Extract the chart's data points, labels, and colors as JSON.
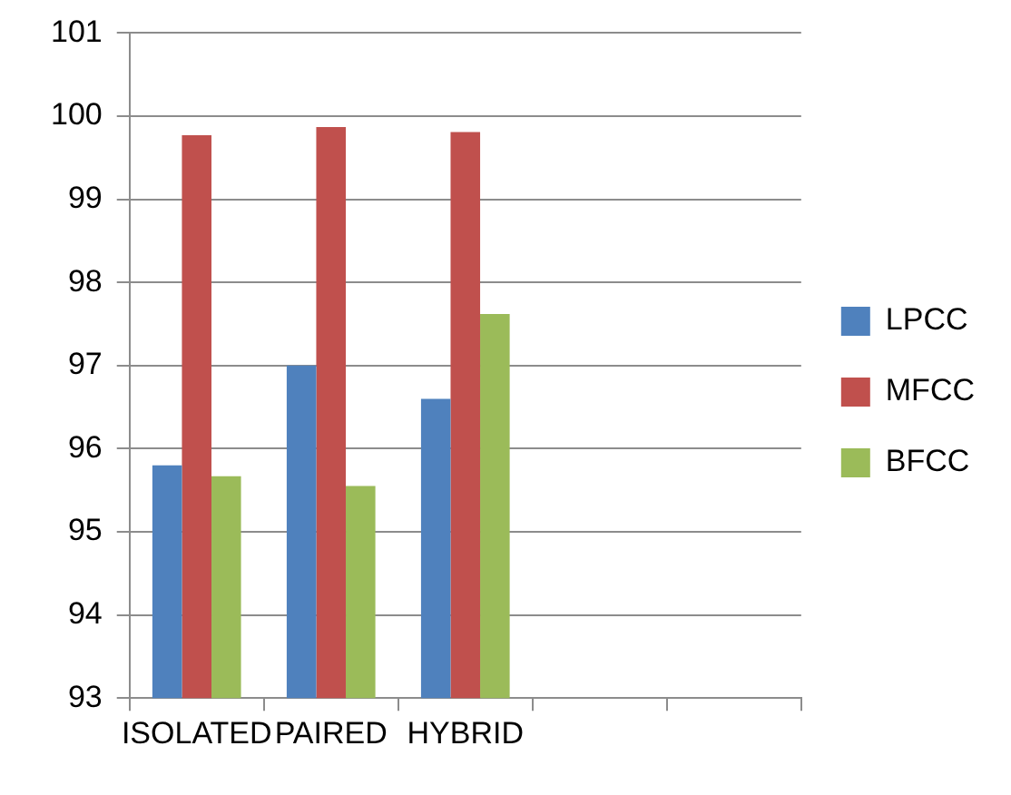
{
  "chart_data": {
    "type": "bar",
    "categories": [
      "ISOLATED",
      "PAIRED",
      "HYBRID",
      null,
      null
    ],
    "series": [
      {
        "name": "LPCC",
        "color": "#4f81bd",
        "values": [
          95.8,
          97.0,
          96.6,
          null,
          null
        ]
      },
      {
        "name": "MFCC",
        "color": "#c0504d",
        "values": [
          99.77,
          99.87,
          99.81,
          null,
          null
        ]
      },
      {
        "name": "BFCC",
        "color": "#9bbb59",
        "values": [
          95.67,
          95.55,
          97.62,
          null,
          null
        ]
      }
    ],
    "ylim": [
      93,
      101
    ],
    "yticks": [
      93,
      94,
      95,
      96,
      97,
      98,
      99,
      100,
      101
    ],
    "grid": "y",
    "legend": "right"
  }
}
